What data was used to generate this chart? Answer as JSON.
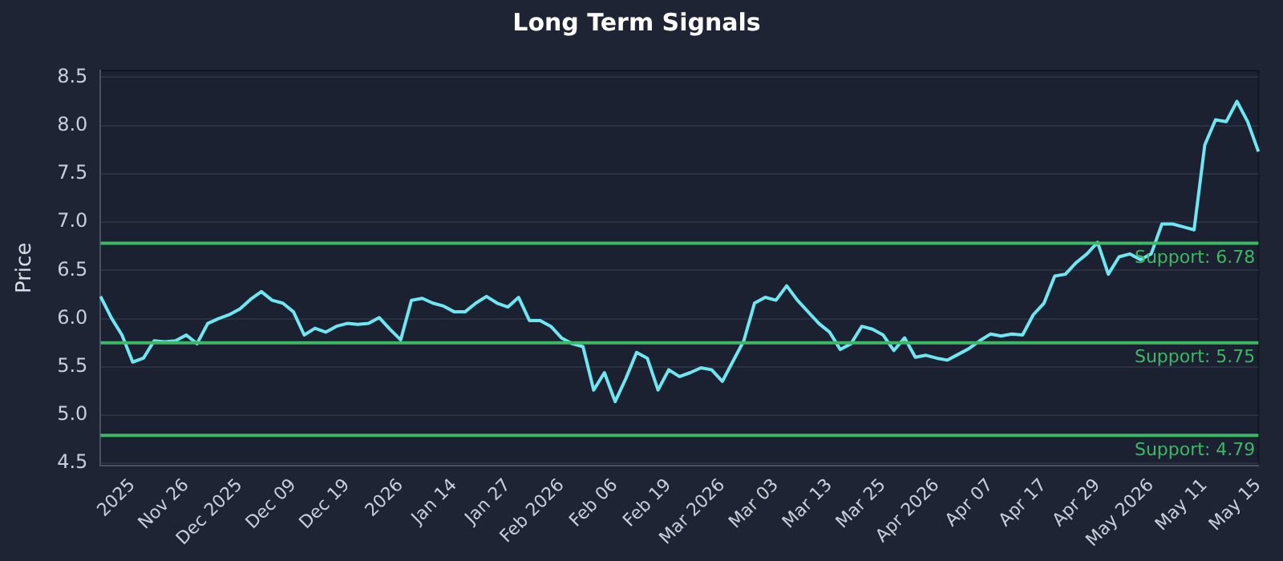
{
  "chart_data": {
    "type": "line",
    "title": "Long Term Signals",
    "ylabel": "Price",
    "categories": [
      null,
      null,
      null,
      "2025",
      null,
      null,
      null,
      null,
      "Nov 26",
      null,
      null,
      null,
      null,
      "Dec 2025",
      null,
      null,
      null,
      null,
      "Dec 09",
      null,
      null,
      null,
      null,
      "Dec 19",
      null,
      null,
      null,
      null,
      "2026",
      null,
      null,
      null,
      null,
      "Jan 14",
      null,
      null,
      null,
      null,
      "Jan 27",
      null,
      null,
      null,
      null,
      "Feb 2026",
      null,
      null,
      null,
      null,
      "Feb 06",
      null,
      null,
      null,
      null,
      "Feb 19",
      null,
      null,
      null,
      null,
      "Mar 2026",
      null,
      null,
      null,
      null,
      "Mar 03",
      null,
      null,
      null,
      null,
      "Mar 13",
      null,
      null,
      null,
      null,
      "Mar 25",
      null,
      null,
      null,
      null,
      "Apr 2026",
      null,
      null,
      null,
      null,
      "Apr 07",
      null,
      null,
      null,
      null,
      "Apr 17",
      null,
      null,
      null,
      null,
      "Apr 29",
      null,
      null,
      null,
      null,
      "May 2026",
      null,
      null,
      null,
      null,
      "May 11",
      null,
      null,
      null,
      null,
      "May 15"
    ],
    "series": [
      {
        "color": "#6ee7f2",
        "values": [
          6.23,
          6.01,
          5.83,
          5.55,
          5.59,
          5.77,
          5.76,
          5.77,
          5.83,
          5.74,
          5.95,
          6.0,
          6.04,
          6.1,
          6.2,
          6.28,
          6.19,
          6.16,
          6.07,
          5.83,
          5.9,
          5.86,
          5.92,
          5.95,
          5.94,
          5.95,
          6.01,
          5.89,
          5.78,
          6.19,
          6.21,
          6.16,
          6.13,
          6.07,
          6.07,
          6.16,
          6.23,
          6.16,
          6.12,
          6.22,
          5.98,
          5.98,
          5.92,
          5.8,
          5.74,
          5.71,
          5.26,
          5.44,
          5.14,
          5.38,
          5.65,
          5.59,
          5.26,
          5.47,
          5.4,
          5.44,
          5.49,
          5.47,
          5.35,
          5.56,
          5.77,
          6.16,
          6.22,
          6.19,
          6.34,
          6.19,
          6.07,
          5.95,
          5.86,
          5.68,
          5.74,
          5.92,
          5.89,
          5.83,
          5.67,
          5.8,
          5.6,
          5.62,
          5.59,
          5.57,
          5.63,
          5.69,
          5.77,
          5.84,
          5.82,
          5.84,
          5.83,
          6.04,
          6.16,
          6.44,
          6.46,
          6.58,
          6.67,
          6.79,
          6.46,
          6.64,
          6.67,
          6.61,
          6.67,
          6.98,
          6.98,
          6.95,
          6.92,
          7.8,
          8.06,
          8.04,
          8.25,
          8.04,
          7.73
        ]
      }
    ],
    "ylim": [
      4.48,
      8.57
    ],
    "yticks": [
      {
        "value": 4.5,
        "label": "4.5"
      },
      {
        "value": 5,
        "label": "5.0"
      },
      {
        "value": 5.5,
        "label": "5.5"
      },
      {
        "value": 6,
        "label": "6.0"
      },
      {
        "value": 6.5,
        "label": "6.5"
      },
      {
        "value": 7,
        "label": "7.0"
      },
      {
        "value": 7.5,
        "label": "7.5"
      },
      {
        "value": 8,
        "label": "8.0"
      },
      {
        "value": 8.5,
        "label": "8.5"
      }
    ],
    "ref_lines": [
      {
        "axis": "y",
        "value": 6.78,
        "label": "Support: 6.78",
        "color": "#3fb866"
      },
      {
        "axis": "y",
        "value": 5.75,
        "label": "Support: 5.75",
        "color": "#3fb866"
      },
      {
        "axis": "y",
        "value": 4.79,
        "label": "Support: 4.79",
        "color": "#3fb866"
      }
    ],
    "grid": "y",
    "legend": false,
    "marker": "none",
    "line_style": "solid"
  }
}
